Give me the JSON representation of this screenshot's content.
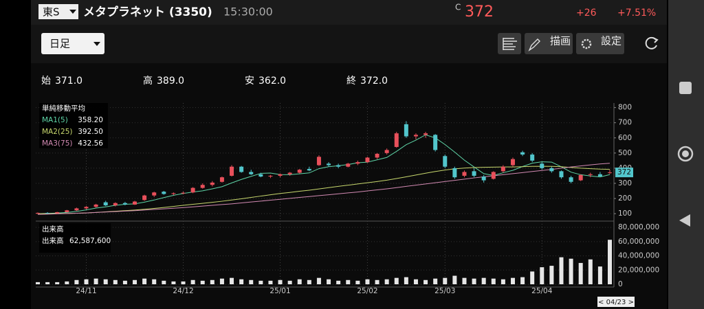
{
  "header": {
    "market": "東S",
    "name": "メタプラネット (3350)",
    "time": "15:30:00",
    "price_prefix": "C",
    "price": "372",
    "change": "+26",
    "change_pct": "+7.51%"
  },
  "toolbar": {
    "period": "日足",
    "draw": "描画",
    "settings": "設定"
  },
  "ohlc": [
    {
      "label": "始",
      "value": "371.0"
    },
    {
      "label": "高",
      "value": "389.0"
    },
    {
      "label": "安",
      "value": "362.0"
    },
    {
      "label": "終",
      "value": "372.0"
    }
  ],
  "chart_data": [
    {
      "type": "candlestick",
      "up_color": "#e8505b",
      "down_color": "#52c6cc",
      "grid": true,
      "legend_title": "単純移動平均",
      "last_price_label": "372",
      "cursor_label": "< 04/23 >",
      "categories": [
        null,
        null,
        null,
        null,
        null,
        "24/11",
        null,
        null,
        null,
        null,
        null,
        null,
        null,
        null,
        null,
        "24/12",
        null,
        null,
        null,
        null,
        null,
        null,
        null,
        null,
        null,
        "25/01",
        null,
        null,
        null,
        null,
        null,
        null,
        null,
        null,
        "25/02",
        null,
        null,
        null,
        null,
        null,
        null,
        null,
        "25/03",
        null,
        null,
        null,
        null,
        null,
        null,
        null,
        null,
        null,
        "25/04",
        null,
        null,
        null,
        null,
        null,
        null,
        null
      ],
      "open": [
        100,
        105,
        103,
        110,
        122,
        135,
        145,
        175,
        155,
        170,
        160,
        190,
        220,
        245,
        230,
        235,
        240,
        270,
        290,
        310,
        350,
        410,
        375,
        360,
        345,
        350,
        360,
        370,
        395,
        420,
        430,
        420,
        410,
        430,
        440,
        470,
        500,
        540,
        690,
        610,
        620,
        620,
        480,
        400,
        350,
        380,
        345,
        330,
        380,
        420,
        505,
        490,
        430,
        400,
        380,
        340,
        320,
        355,
        360,
        371
      ],
      "high": [
        108,
        110,
        112,
        125,
        140,
        150,
        165,
        185,
        175,
        178,
        185,
        225,
        245,
        250,
        240,
        245,
        275,
        300,
        315,
        345,
        420,
        415,
        390,
        370,
        355,
        365,
        375,
        395,
        410,
        485,
        440,
        430,
        435,
        450,
        475,
        500,
        530,
        640,
        710,
        630,
        640,
        625,
        490,
        410,
        385,
        400,
        355,
        380,
        420,
        470,
        515,
        500,
        440,
        410,
        385,
        350,
        360,
        370,
        375,
        389
      ],
      "low": [
        98,
        100,
        100,
        108,
        118,
        128,
        140,
        150,
        148,
        155,
        158,
        185,
        210,
        225,
        222,
        228,
        235,
        265,
        280,
        305,
        345,
        370,
        355,
        340,
        335,
        340,
        350,
        365,
        380,
        415,
        410,
        400,
        405,
        420,
        435,
        460,
        490,
        535,
        600,
        590,
        600,
        510,
        400,
        330,
        340,
        340,
        305,
        325,
        370,
        410,
        480,
        440,
        390,
        370,
        330,
        300,
        315,
        340,
        345,
        362
      ],
      "close": [
        105,
        103,
        110,
        122,
        135,
        145,
        160,
        155,
        170,
        160,
        180,
        220,
        240,
        230,
        235,
        238,
        270,
        290,
        305,
        340,
        410,
        375,
        360,
        345,
        350,
        360,
        370,
        390,
        385,
        475,
        420,
        410,
        430,
        440,
        470,
        495,
        520,
        630,
        610,
        620,
        630,
        520,
        410,
        340,
        375,
        350,
        320,
        375,
        410,
        460,
        490,
        450,
        400,
        380,
        340,
        310,
        355,
        360,
        346,
        372
      ],
      "lines": [
        {
          "name": "MA1(5)",
          "legend_value": "358.20",
          "color": "#5fd6a8",
          "values": [
            100,
            102,
            104,
            108,
            115,
            125,
            137,
            145,
            155,
            162,
            165,
            176,
            190,
            206,
            221,
            233,
            243,
            251,
            264,
            278,
            303,
            326,
            346,
            366,
            368,
            358,
            357,
            363,
            369,
            397,
            410,
            416,
            424,
            436,
            440,
            455,
            471,
            511,
            555,
            585,
            620,
            600,
            556,
            506,
            453,
            408,
            364,
            352,
            370,
            386,
            411,
            433,
            442,
            440,
            409,
            374,
            357,
            349,
            342,
            358
          ]
        },
        {
          "name": "MA2(25)",
          "legend_value": "392.50",
          "color": "#c9d96e",
          "values": [
            100,
            100,
            101,
            102,
            103,
            105,
            108,
            112,
            116,
            120,
            124,
            129,
            135,
            141,
            148,
            155,
            162,
            168,
            175,
            182,
            190,
            198,
            207,
            216,
            225,
            233,
            240,
            248,
            255,
            263,
            272,
            280,
            288,
            296,
            304,
            312,
            321,
            332,
            343,
            355,
            367,
            378,
            388,
            396,
            401,
            404,
            406,
            407,
            408,
            408,
            410,
            412,
            413,
            412,
            410,
            405,
            400,
            397,
            394,
            392.5
          ]
        },
        {
          "name": "MA3(75)",
          "legend_value": "432.56",
          "color": "#d48bb4",
          "values": [
            95,
            97,
            99,
            101,
            103,
            105,
            108,
            111,
            114,
            117,
            120,
            124,
            128,
            132,
            136,
            140,
            145,
            150,
            155,
            160,
            165,
            171,
            177,
            183,
            189,
            195,
            201,
            207,
            213,
            219,
            225,
            231,
            237,
            243,
            250,
            257,
            264,
            272,
            280,
            288,
            296,
            304,
            312,
            320,
            328,
            336,
            343,
            350,
            357,
            364,
            371,
            378,
            385,
            392,
            400,
            408,
            415,
            422,
            428,
            432.56
          ]
        }
      ],
      "ylim": [
        60,
        830
      ],
      "yticks": [
        100,
        200,
        300,
        400,
        500,
        600,
        700,
        800
      ]
    },
    {
      "type": "bar",
      "title": "出来高",
      "legend_label": "出来高",
      "legend_value": "62,587,600",
      "color": "#e6e6e6",
      "values": [
        3000000,
        3000000,
        3000000,
        4000000,
        6000000,
        7000000,
        8000000,
        7000000,
        6000000,
        5000000,
        6000000,
        8000000,
        7000000,
        5000000,
        4000000,
        4000000,
        6000000,
        5000000,
        6000000,
        8000000,
        9000000,
        7000000,
        6000000,
        5000000,
        5000000,
        6000000,
        5000000,
        7000000,
        6000000,
        9000000,
        7000000,
        5000000,
        6000000,
        5000000,
        7000000,
        6000000,
        7000000,
        9000000,
        10000000,
        7000000,
        6000000,
        8000000,
        9000000,
        12000000,
        9000000,
        8000000,
        9000000,
        8000000,
        7000000,
        9000000,
        10000000,
        18000000,
        24000000,
        26000000,
        38000000,
        36000000,
        30000000,
        35000000,
        25000000,
        62587600
      ],
      "ylim": [
        0,
        85000000
      ],
      "yticks": [
        0,
        {
          "value": 20000000,
          "label": "20,000,000"
        },
        {
          "value": 40000000,
          "label": "40,000,000"
        },
        {
          "value": 60000000,
          "label": "60,000,000"
        },
        {
          "value": 80000000,
          "label": "80,000,000"
        }
      ]
    }
  ]
}
